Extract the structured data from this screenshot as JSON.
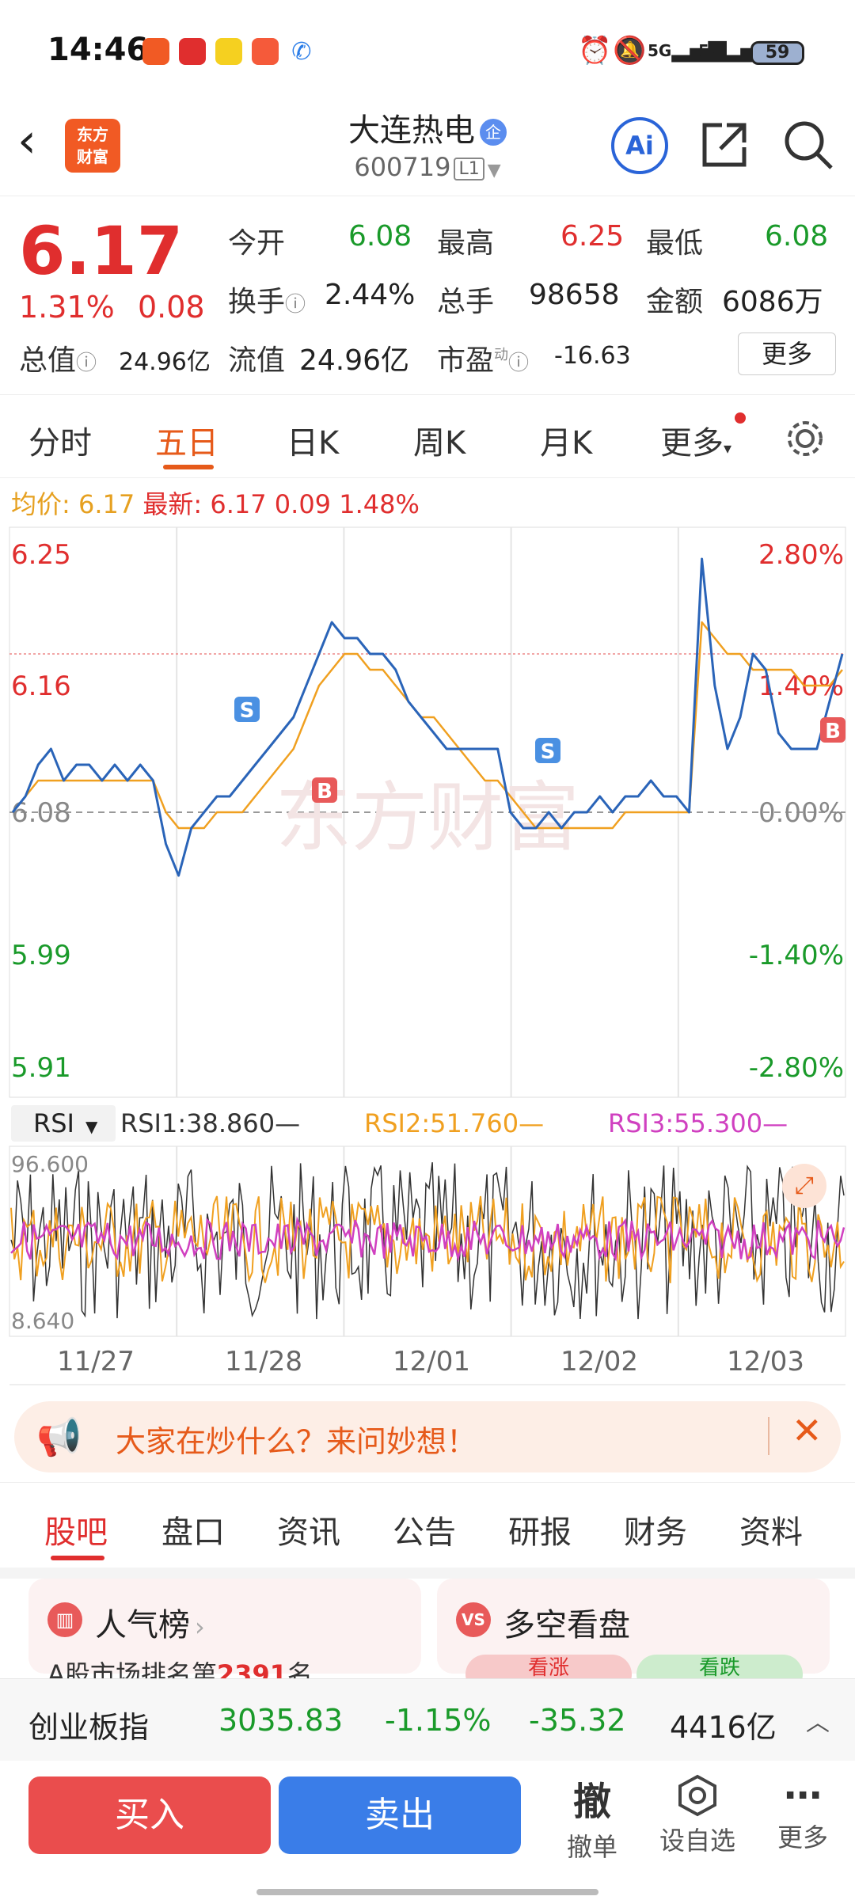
{
  "status_bar": {
    "time": "14:46",
    "battery": "59",
    "signal": "5G"
  },
  "header": {
    "logo_text_1": "东方",
    "logo_text_2": "财富",
    "stock_name": "大连热电",
    "qi_badge": "企",
    "stock_code": "600719",
    "level": "L1",
    "ai_label": "Ai"
  },
  "quote": {
    "price": "6.17",
    "change_pct": "1.31%",
    "change_abs": "0.08",
    "open_label": "今开",
    "open_val": "6.08",
    "high_label": "最高",
    "high_val": "6.25",
    "low_label": "最低",
    "low_val": "6.08",
    "turnover_label": "换手",
    "turnover_val": "2.44%",
    "volume_label": "总手",
    "volume_val": "98658",
    "amount_label": "金额",
    "amount_val": "6086万",
    "mcap_label": "总值",
    "mcap_val": "24.96亿",
    "float_label": "流值",
    "float_val": "24.96亿",
    "pe_label": "市盈",
    "pe_sup": "动",
    "pe_val": "-16.63",
    "more_label": "更多"
  },
  "tabs": [
    "分时",
    "五日",
    "日K",
    "周K",
    "月K",
    "更多"
  ],
  "avg": {
    "avg_label": "均价:",
    "avg_val": "6.17",
    "latest_label": "最新:",
    "latest_val": "6.17",
    "chg": "0.09",
    "chg_pct": "1.48%"
  },
  "chart_data": {
    "type": "line",
    "x": [
      "11/27",
      "11/28",
      "12/01",
      "12/02",
      "12/03"
    ],
    "y_labels_left": [
      "6.25",
      "6.16",
      "6.08",
      "5.99",
      "5.91"
    ],
    "y_labels_right": [
      "2.80%",
      "1.40%",
      "0.00%",
      "-1.40%",
      "-2.80%"
    ],
    "ylim": [
      5.91,
      6.25
    ],
    "prev_close": 6.08,
    "price_series": [
      6.08,
      6.09,
      6.11,
      6.12,
      6.1,
      6.11,
      6.11,
      6.1,
      6.11,
      6.1,
      6.11,
      6.1,
      6.06,
      6.04,
      6.07,
      6.08,
      6.09,
      6.09,
      6.1,
      6.11,
      6.12,
      6.13,
      6.14,
      6.16,
      6.18,
      6.2,
      6.19,
      6.19,
      6.18,
      6.18,
      6.17,
      6.15,
      6.14,
      6.13,
      6.12,
      6.12,
      6.12,
      6.12,
      6.12,
      6.08,
      6.07,
      6.07,
      6.08,
      6.07,
      6.08,
      6.08,
      6.09,
      6.08,
      6.09,
      6.09,
      6.1,
      6.09,
      6.09,
      6.08,
      6.24,
      6.16,
      6.12,
      6.14,
      6.18,
      6.17,
      6.13,
      6.12,
      6.12,
      6.12,
      6.15,
      6.18
    ],
    "avg_series": [
      6.08,
      6.09,
      6.1,
      6.1,
      6.1,
      6.1,
      6.1,
      6.1,
      6.1,
      6.1,
      6.1,
      6.1,
      6.08,
      6.07,
      6.07,
      6.07,
      6.08,
      6.08,
      6.08,
      6.09,
      6.1,
      6.11,
      6.12,
      6.14,
      6.16,
      6.17,
      6.18,
      6.18,
      6.17,
      6.17,
      6.16,
      6.15,
      6.14,
      6.14,
      6.13,
      6.12,
      6.11,
      6.1,
      6.1,
      6.09,
      6.08,
      6.07,
      6.07,
      6.07,
      6.07,
      6.07,
      6.07,
      6.07,
      6.08,
      6.08,
      6.08,
      6.08,
      6.08,
      6.08,
      6.2,
      6.19,
      6.18,
      6.18,
      6.17,
      6.17,
      6.17,
      6.17,
      6.16,
      6.16,
      6.16,
      6.17
    ],
    "markers": [
      {
        "label": "S",
        "day": 1,
        "type": "sell"
      },
      {
        "label": "B",
        "day": 1,
        "type": "buy"
      },
      {
        "label": "S",
        "day": 3,
        "type": "sell"
      },
      {
        "label": "B",
        "day": 4,
        "type": "buy"
      }
    ]
  },
  "watermark": "东方财富",
  "rsi": {
    "selector": "RSI",
    "rsi1": "RSI1:38.860—",
    "rsi2": "RSI2:51.760—",
    "rsi3": "RSI3:55.300—",
    "top": "96.600",
    "bottom": "8.640",
    "colors": {
      "rsi1": "#333333",
      "rsi2": "#f0a020",
      "rsi3": "#d040c0"
    }
  },
  "promo_text": "大家在炒什么？来问妙想！",
  "sub_tabs": [
    "股吧",
    "盘口",
    "资讯",
    "公告",
    "研报",
    "财务",
    "资料"
  ],
  "cards": {
    "left_title": "人气榜",
    "left_sub_prefix": "A股市场排名第",
    "left_rank": "2391",
    "left_sub_suffix": "名",
    "right_title": "多空看盘",
    "right_up": "看涨",
    "right_down": "看跌"
  },
  "index_bar": {
    "name": "创业板指",
    "value": "3035.83",
    "pct": "-1.15%",
    "chg": "-35.32",
    "amount": "4416亿"
  },
  "bottom": {
    "buy": "买入",
    "sell": "卖出",
    "cancel_icon": "撤",
    "cancel": "撤单",
    "watch": "设自选",
    "more": "更多"
  },
  "colors": {
    "up": "#e02e2e",
    "down": "#1a9a2a",
    "accent": "#e65a1a",
    "price_line": "#2a64b8",
    "avg_line": "#f0a020"
  }
}
